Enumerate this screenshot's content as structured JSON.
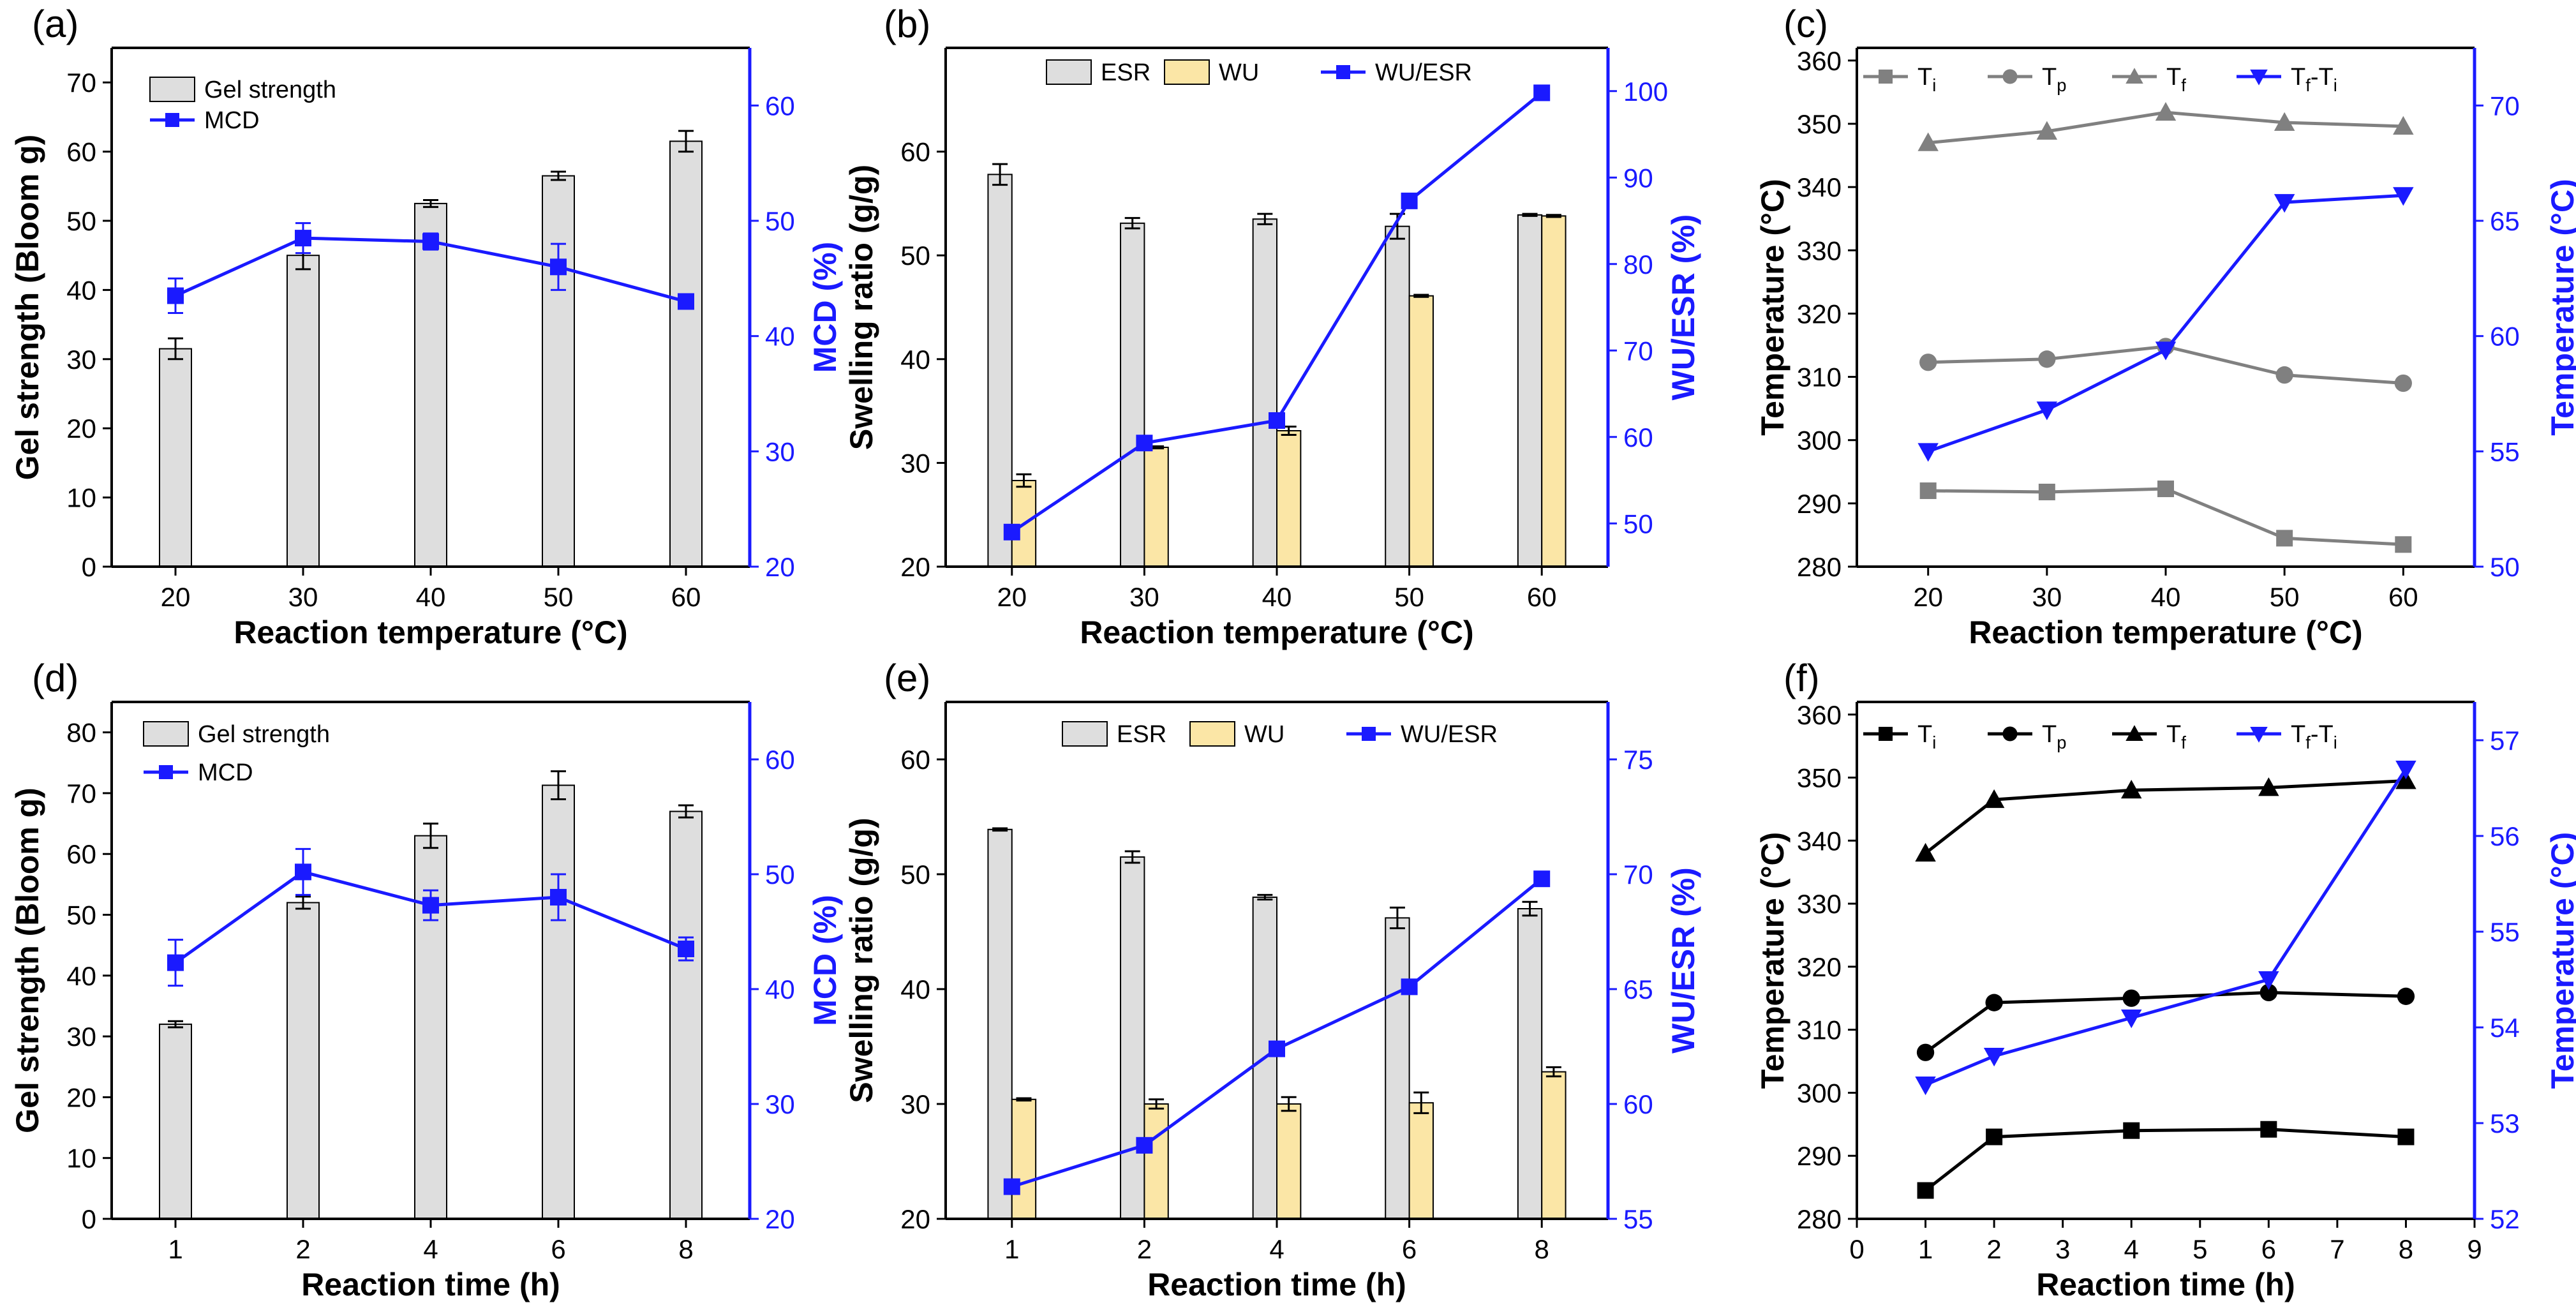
{
  "chart_data": [
    {
      "panel_label": "(a)",
      "type": "bar+line",
      "xlabel": "Reaction temperature (°C)",
      "ylabel_left": "Gel strength (Bloom g)",
      "ylabel_right": "MCD (%)",
      "categories": [
        "20",
        "30",
        "40",
        "50",
        "60"
      ],
      "ylim_left": [
        0,
        75
      ],
      "yticks_left": [
        0,
        10,
        20,
        30,
        40,
        50,
        60,
        70
      ],
      "ylim_right": [
        20,
        65
      ],
      "yticks_right": [
        20,
        30,
        40,
        50,
        60
      ],
      "legend_position": "top-left",
      "bars": [
        {
          "name": "Gel strength",
          "color": "#dedede",
          "values": [
            31.5,
            45.0,
            52.5,
            56.5,
            61.5
          ],
          "errors": [
            1.5,
            2.0,
            0.5,
            0.6,
            1.5
          ]
        }
      ],
      "lines": [
        {
          "name": "MCD",
          "marker": "square",
          "color": "#1a1aff",
          "axis": "right",
          "values": [
            43.5,
            48.5,
            48.2,
            46.0,
            43.0
          ],
          "errors": [
            1.5,
            1.3,
            0.7,
            2.0,
            0
          ]
        }
      ]
    },
    {
      "panel_label": "(b)",
      "type": "bar+line",
      "xlabel": "Reaction temperature (°C)",
      "ylabel_left": "Swelling ratio (g/g)",
      "ylabel_right": "WU/ESR (%)",
      "categories": [
        "20",
        "30",
        "40",
        "50",
        "60"
      ],
      "ylim_left": [
        20,
        70
      ],
      "yticks_left": [
        20,
        30,
        40,
        50,
        60
      ],
      "ylim_right": [
        45,
        105
      ],
      "yticks_right": [
        50,
        60,
        70,
        80,
        90,
        100
      ],
      "legend_position": "top",
      "bars": [
        {
          "name": "ESR",
          "color": "#dedede",
          "values": [
            57.8,
            53.1,
            53.5,
            52.8,
            53.9
          ],
          "errors": [
            1.0,
            0.5,
            0.5,
            1.2,
            0.1
          ]
        },
        {
          "name": "WU",
          "color": "#fbe6a6",
          "values": [
            28.3,
            31.5,
            33.1,
            46.1,
            53.8
          ],
          "errors": [
            0.6,
            0.1,
            0.4,
            0.1,
            0.1
          ]
        }
      ],
      "lines": [
        {
          "name": "WU/ESR",
          "marker": "square",
          "color": "#1a1aff",
          "axis": "right",
          "values": [
            49.0,
            59.3,
            61.9,
            87.3,
            99.8
          ]
        }
      ]
    },
    {
      "panel_label": "(c)",
      "type": "line",
      "xlabel": "Reaction temperature (°C)",
      "ylabel_left": "Temperature (°C)",
      "ylabel_right": "Temperature (°C)",
      "x": [
        20,
        30,
        40,
        50,
        60
      ],
      "xticks": [
        20,
        30,
        40,
        50,
        60
      ],
      "xlim": [
        14,
        66
      ],
      "ylim_left": [
        280,
        362
      ],
      "yticks_left": [
        280,
        290,
        300,
        310,
        320,
        330,
        340,
        350,
        360
      ],
      "ylim_right": [
        50,
        72.5
      ],
      "yticks_right": [
        50,
        55,
        60,
        65,
        70
      ],
      "legend_position": "top",
      "series": [
        {
          "name": "Ti",
          "label_main": "T",
          "label_sub": "i",
          "marker": "square",
          "color": "#808080",
          "axis": "left",
          "values": [
            292.0,
            291.8,
            292.3,
            284.5,
            283.5
          ]
        },
        {
          "name": "Tp",
          "label_main": "T",
          "label_sub": "p",
          "marker": "circle",
          "color": "#808080",
          "axis": "left",
          "values": [
            312.3,
            312.8,
            314.8,
            310.3,
            309.0
          ]
        },
        {
          "name": "Tf",
          "label_main": "T",
          "label_sub": "f",
          "marker": "triangle-up",
          "color": "#808080",
          "axis": "left",
          "values": [
            347.0,
            348.8,
            351.8,
            350.2,
            349.6
          ]
        },
        {
          "name": "Tf-Ti",
          "label_main": "T",
          "label_sub": "f",
          "label_mid": "-T",
          "label_sub2": "i",
          "marker": "triangle-down",
          "color": "#1a1aff",
          "axis": "right",
          "values": [
            55.0,
            56.8,
            59.4,
            65.8,
            66.1
          ]
        }
      ]
    },
    {
      "panel_label": "(d)",
      "type": "bar+line",
      "xlabel": "Reaction time (h)",
      "ylabel_left": "Gel strength (Bloom g)",
      "ylabel_right": "MCD (%)",
      "categories": [
        "1",
        "2",
        "4",
        "6",
        "8"
      ],
      "ylim_left": [
        0,
        85
      ],
      "yticks_left": [
        0,
        10,
        20,
        30,
        40,
        50,
        60,
        70,
        80
      ],
      "ylim_right": [
        20,
        65
      ],
      "yticks_right": [
        20,
        30,
        40,
        50,
        60
      ],
      "legend_position": "top-left",
      "bars": [
        {
          "name": "Gel strength",
          "color": "#dedede",
          "values": [
            32.0,
            52.0,
            63.0,
            71.3,
            67.0
          ],
          "errors": [
            0.5,
            1.0,
            2.0,
            2.3,
            1.0
          ]
        }
      ],
      "lines": [
        {
          "name": "MCD",
          "marker": "square",
          "color": "#1a1aff",
          "axis": "right",
          "values": [
            42.3,
            50.2,
            47.3,
            48.0,
            43.5
          ],
          "errors": [
            2.0,
            2.0,
            1.3,
            2.0,
            1.0
          ]
        }
      ]
    },
    {
      "panel_label": "(e)",
      "type": "bar+line",
      "xlabel": "Reaction time (h)",
      "ylabel_left": "Swelling ratio (g/g)",
      "ylabel_right": "WU/ESR (%)",
      "categories": [
        "1",
        "2",
        "4",
        "6",
        "8"
      ],
      "ylim_left": [
        20,
        65
      ],
      "yticks_left": [
        20,
        30,
        40,
        50,
        60
      ],
      "ylim_right": [
        55,
        77.5
      ],
      "yticks_right": [
        55,
        60,
        65,
        70,
        75
      ],
      "legend_position": "top",
      "bars": [
        {
          "name": "ESR",
          "color": "#dedede",
          "values": [
            53.9,
            51.5,
            48.0,
            46.2,
            47.0
          ],
          "errors": [
            0.1,
            0.5,
            0.2,
            0.9,
            0.6
          ]
        },
        {
          "name": "WU",
          "color": "#fbe6a6",
          "values": [
            30.4,
            30.0,
            30.0,
            30.1,
            32.8
          ],
          "errors": [
            0.1,
            0.4,
            0.6,
            0.9,
            0.4
          ]
        }
      ],
      "lines": [
        {
          "name": "WU/ESR",
          "marker": "square",
          "color": "#1a1aff",
          "axis": "right",
          "values": [
            56.4,
            58.2,
            62.4,
            65.1,
            69.8
          ]
        }
      ]
    },
    {
      "panel_label": "(f)",
      "type": "line",
      "xlabel": "Reaction time (h)",
      "ylabel_left": "Temperature (°C)",
      "ylabel_right": "Temperature (°C)",
      "x": [
        1,
        2,
        4,
        6,
        8
      ],
      "xticks": [
        0,
        1,
        2,
        3,
        4,
        5,
        6,
        7,
        8,
        9
      ],
      "xlim": [
        0,
        9
      ],
      "ylim_left": [
        280,
        362
      ],
      "yticks_left": [
        280,
        290,
        300,
        310,
        320,
        330,
        340,
        350,
        360
      ],
      "ylim_right": [
        52,
        57.4
      ],
      "yticks_right": [
        52,
        53,
        54,
        55,
        56,
        57
      ],
      "legend_position": "top",
      "series": [
        {
          "name": "Ti",
          "label_main": "T",
          "label_sub": "i",
          "marker": "square",
          "color": "#000000",
          "axis": "left",
          "values": [
            284.5,
            293.0,
            294.0,
            294.2,
            293.0
          ]
        },
        {
          "name": "Tp",
          "label_main": "T",
          "label_sub": "p",
          "marker": "circle",
          "color": "#000000",
          "axis": "left",
          "values": [
            306.4,
            314.3,
            315.0,
            315.9,
            315.3
          ]
        },
        {
          "name": "Tf",
          "label_main": "T",
          "label_sub": "f",
          "marker": "triangle-up",
          "color": "#000000",
          "axis": "left",
          "values": [
            338.0,
            346.5,
            348.0,
            348.4,
            349.5
          ]
        },
        {
          "name": "Tf-Ti",
          "label_main": "T",
          "label_sub": "f",
          "label_mid": "-T",
          "label_sub2": "i",
          "marker": "triangle-down",
          "color": "#1a1aff",
          "axis": "right",
          "values": [
            53.4,
            53.7,
            54.1,
            54.5,
            56.7
          ]
        }
      ]
    }
  ]
}
